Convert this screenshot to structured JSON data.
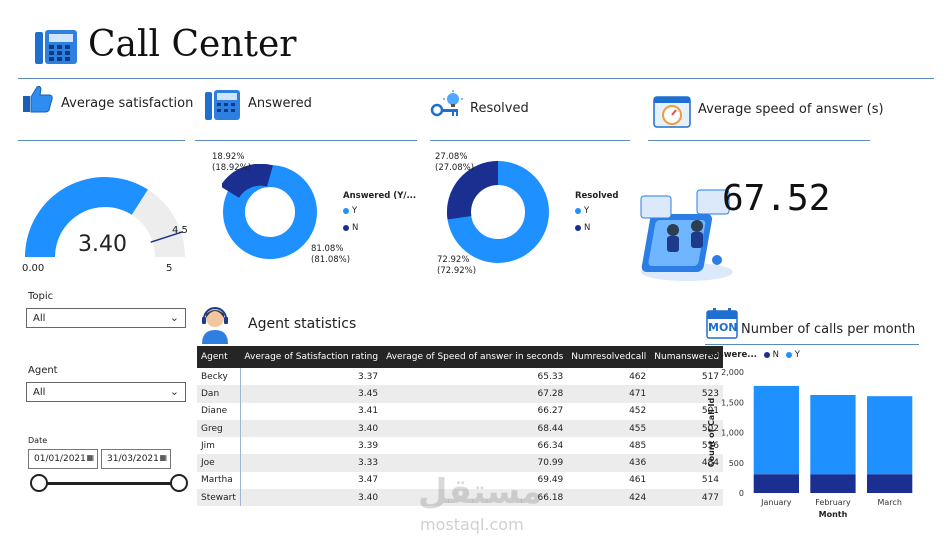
{
  "header": {
    "title": "Call Center"
  },
  "kpis": {
    "satisfaction": {
      "title": "Average satisfaction",
      "value": "3.40",
      "min": "0.00",
      "max": "5",
      "target": "4.5",
      "fraction": 0.68
    },
    "answered": {
      "title": "Answered",
      "legend_title": "Answered (Y/...",
      "items": [
        {
          "label": "Y",
          "pct": "81.08%",
          "pct2": "(81.08%)"
        },
        {
          "label": "N",
          "pct": "18.92%",
          "pct2": "(18.92%)"
        }
      ]
    },
    "resolved": {
      "title": "Resolved",
      "legend_title": "Resolved",
      "items": [
        {
          "label": "Y",
          "pct": "72.92%",
          "pct2": "(72.92%)"
        },
        {
          "label": "N",
          "pct": "27.08%",
          "pct2": "(27.08%)"
        }
      ]
    },
    "speed": {
      "title": "Average speed of answer (s)",
      "value": "67.52"
    }
  },
  "filters": {
    "topic": {
      "label": "Topic",
      "value": "All"
    },
    "agent": {
      "label": "Agent",
      "value": "All"
    },
    "date": {
      "label": "Date",
      "start": "01/01/2021",
      "end": "31/03/2021"
    }
  },
  "agent_stats": {
    "title": "Agent statistics",
    "columns": [
      "Agent",
      "Average of Satisfaction rating",
      "Average of Speed of answer in seconds",
      "Numresolvedcall",
      "Numanswered"
    ],
    "rows": [
      [
        "Becky",
        "3.37",
        "65.33",
        "462",
        "517"
      ],
      [
        "Dan",
        "3.45",
        "67.28",
        "471",
        "523"
      ],
      [
        "Diane",
        "3.41",
        "66.27",
        "452",
        "501"
      ],
      [
        "Greg",
        "3.40",
        "68.44",
        "455",
        "502"
      ],
      [
        "Jim",
        "3.39",
        "66.34",
        "485",
        "536"
      ],
      [
        "Joe",
        "3.33",
        "70.99",
        "436",
        "484"
      ],
      [
        "Martha",
        "3.47",
        "69.49",
        "461",
        "514"
      ],
      [
        "Stewart",
        "3.40",
        "66.18",
        "424",
        "477"
      ]
    ]
  },
  "monthly": {
    "title": "Number of calls per month",
    "icon_text": "MON",
    "legend_title": "Answere...",
    "legend": [
      "N",
      "Y"
    ]
  },
  "watermark": {
    "arabic": "مستقل",
    "latin": "mostaql.com"
  },
  "colors": {
    "primary": "#1e90ff",
    "dark": "#1a2f8f",
    "gauge_bg": "#ededed",
    "line": "#5b8bb8"
  },
  "chart_data": {
    "type": "bar",
    "stacked": true,
    "categories": [
      "January",
      "February",
      "March"
    ],
    "series": [
      {
        "name": "N",
        "values": [
          310,
          310,
          310
        ]
      },
      {
        "name": "Y",
        "values": [
          1460,
          1310,
          1290
        ]
      }
    ],
    "xlabel": "Month",
    "ylabel": "Count of Call Id",
    "ylim": [
      0,
      2000
    ],
    "yticks": [
      "0",
      "500",
      "1,000",
      "1,500",
      "2,000"
    ],
    "legend_placement": "top-left"
  }
}
